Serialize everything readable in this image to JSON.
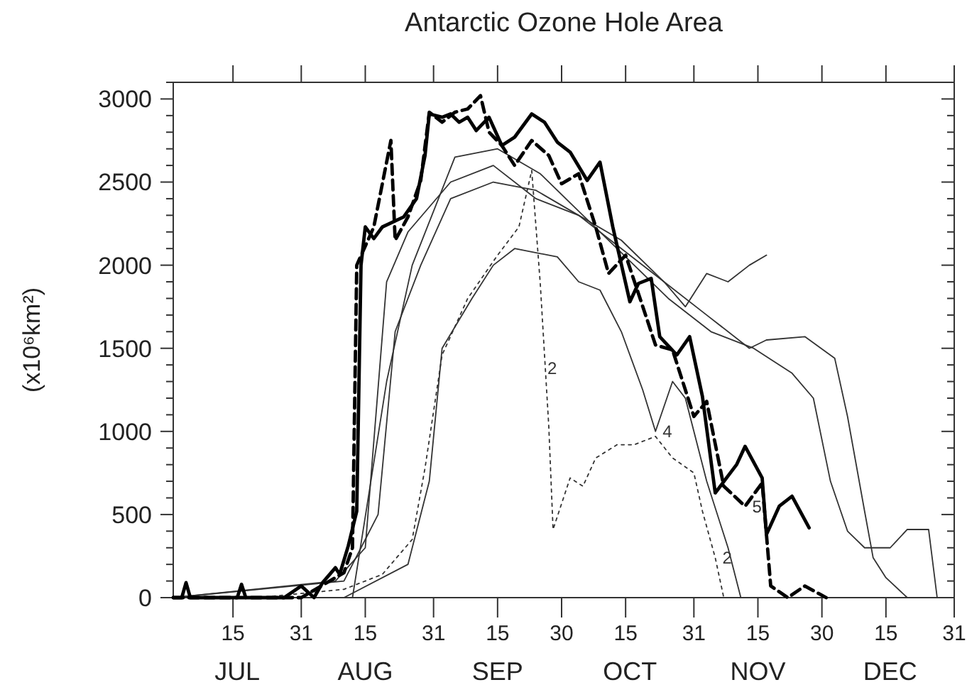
{
  "chart_data": {
    "type": "line",
    "title": "Antarctic Ozone Hole Area",
    "ylabel": "(x10⁶km²)",
    "xlim": [
      "--07-01",
      "--12-31"
    ],
    "xticks": [
      {
        "value": "--07-15",
        "label": "15"
      },
      {
        "value": "--07-31",
        "label": "31"
      },
      {
        "value": "--08-15",
        "label": "15"
      },
      {
        "value": "--08-31",
        "label": "31"
      },
      {
        "value": "--09-15",
        "label": "15"
      },
      {
        "value": "--09-30",
        "label": "30"
      },
      {
        "value": "--10-15",
        "label": "15"
      },
      {
        "value": "--10-31",
        "label": "31"
      },
      {
        "value": "--11-15",
        "label": "15"
      },
      {
        "value": "--11-30",
        "label": "30"
      },
      {
        "value": "--12-15",
        "label": "15"
      },
      {
        "value": "--12-31",
        "label": "31"
      }
    ],
    "x2lim": [
      "--07-01",
      "--12-31"
    ],
    "x2ticks": [
      {
        "value": "--07-16",
        "label": "JUL"
      },
      {
        "value": "--08-15",
        "label": "AUG"
      },
      {
        "value": "--09-15",
        "label": "SEP"
      },
      {
        "value": "--10-16",
        "label": "OCT"
      },
      {
        "value": "--11-15",
        "label": "NOV"
      },
      {
        "value": "--12-16",
        "label": "DEC"
      }
    ],
    "ylim": [
      0,
      3100
    ],
    "yticks": [
      0,
      {
        "value": 100,
        "label": null
      },
      {
        "value": 200,
        "label": null
      },
      {
        "value": 300,
        "label": null
      },
      {
        "value": 400,
        "label": null
      },
      500,
      {
        "value": 600,
        "label": null
      },
      {
        "value": 700,
        "label": null
      },
      {
        "value": 800,
        "label": null
      },
      {
        "value": 900,
        "label": null
      },
      1000,
      {
        "value": 1100,
        "label": null
      },
      {
        "value": 1200,
        "label": null
      },
      {
        "value": 1300,
        "label": null
      },
      {
        "value": 1400,
        "label": null
      },
      1500,
      {
        "value": 1600,
        "label": null
      },
      {
        "value": 1700,
        "label": null
      },
      {
        "value": 1800,
        "label": null
      },
      {
        "value": 1900,
        "label": null
      },
      2000,
      {
        "value": 2100,
        "label": null
      },
      {
        "value": 2200,
        "label": null
      },
      {
        "value": 2300,
        "label": null
      },
      {
        "value": 2400,
        "label": null
      },
      2500,
      {
        "value": 2600,
        "label": null
      },
      {
        "value": 2700,
        "label": null
      },
      {
        "value": 2800,
        "label": null
      },
      {
        "value": 2900,
        "label": null
      },
      3000,
      {
        "value": 3100,
        "label": null
      }
    ],
    "grid": false,
    "series": [
      {
        "color": "#333333",
        "line_style": "solid",
        "x": [
          "--07-01",
          "--08-10",
          "--08-18",
          "--08-22",
          "--08-28",
          "--09-04",
          "--09-14",
          "--09-24",
          "--10-04",
          "--10-14",
          "--10-24",
          "--11-03",
          "--11-13",
          "--11-17",
          "--11-26",
          "--12-03",
          "--12-06",
          "--12-10",
          "--12-12",
          "--12-15",
          "--12-20",
          "--12-31"
        ],
        "values": [
          0,
          100,
          500,
          1600,
          2000,
          2400,
          2500,
          2450,
          2300,
          2100,
          1900,
          1700,
          1500,
          1550,
          1570,
          1440,
          1090,
          520,
          240,
          120,
          0,
          0
        ]
      },
      {
        "color": "#333333",
        "line_style": "solid",
        "x": [
          "--07-01",
          "--08-08",
          "--08-15",
          "--08-20",
          "--08-25",
          "--09-04",
          "--09-14",
          "--09-24",
          "--10-04",
          "--10-14",
          "--10-24",
          "--10-29",
          "--11-03",
          "--11-08",
          "--11-13",
          "--11-17"
        ],
        "values": [
          0,
          100,
          300,
          1900,
          2200,
          2500,
          2600,
          2400,
          2300,
          2150,
          1900,
          1750,
          1950,
          1900,
          2000,
          2060
        ]
      },
      {
        "color": "#333333",
        "line_style": "solid",
        "x": [
          "--07-01",
          "--08-12",
          "--08-20",
          "--08-26",
          "--09-05",
          "--09-15",
          "--09-25",
          "--10-05",
          "--10-15",
          "--10-25",
          "--11-04",
          "--11-14",
          "--11-23",
          "--11-28",
          "--12-02",
          "--12-06",
          "--12-10",
          "--12-16",
          "--12-20",
          "--12-25",
          "--12-27",
          "--12-31"
        ],
        "values": [
          0,
          0,
          1300,
          2000,
          2650,
          2700,
          2550,
          2300,
          2050,
          1800,
          1600,
          1500,
          1350,
          1200,
          700,
          400,
          300,
          300,
          410,
          410,
          0,
          0
        ]
      },
      {
        "color": "#333333",
        "line_style": "solid",
        "x": [
          "--07-01",
          "--08-10",
          "--08-25",
          "--08-30",
          "--09-02",
          "--09-09",
          "--09-14",
          "--09-19",
          "--09-29",
          "--10-04",
          "--10-09",
          "--10-14",
          "--10-19",
          "--10-22",
          "--10-26",
          "--10-29",
          "--11-03",
          "--11-08",
          "--11-11"
        ],
        "values": [
          0,
          0,
          200,
          700,
          1500,
          1800,
          2000,
          2100,
          2050,
          1900,
          1850,
          1600,
          1250,
          1000,
          1300,
          1200,
          700,
          300,
          0
        ]
      },
      {
        "color": "#333333",
        "line_style": "dotted",
        "x": [
          "--07-01",
          "--07-21",
          "--08-10",
          "--08-19",
          "--08-26",
          "--08-29",
          "--09-02",
          "--09-08",
          "--09-15",
          "--09-20",
          "--09-23",
          "--09-25",
          "--09-27",
          "--09-28",
          "--10-02",
          "--10-05",
          "--10-08",
          "--10-13",
          "--10-17",
          "--10-22",
          "--10-26",
          "--10-31",
          "--11-02",
          "--11-05",
          "--11-07"
        ],
        "values": [
          0,
          0,
          50,
          140,
          350,
          780,
          1460,
          1800,
          2060,
          2230,
          2570,
          1890,
          1030,
          410,
          720,
          670,
          840,
          920,
          920,
          970,
          840,
          750,
          520,
          240,
          0
        ]
      },
      {
        "color": "#000000",
        "line_style": "dashed",
        "x": [
          "--07-01",
          "--07-31",
          "--08-10",
          "--08-12",
          "--08-13",
          "--08-17",
          "--08-21",
          "--08-22",
          "--08-25",
          "--08-28",
          "--08-30",
          "--09-02",
          "--09-05",
          "--09-08",
          "--09-11",
          "--09-13",
          "--09-16",
          "--09-19",
          "--09-23",
          "--09-27",
          "--09-30",
          "--10-04",
          "--10-08",
          "--10-11",
          "--10-15",
          "--10-18",
          "--10-22",
          "--10-26",
          "--10-31",
          "--11-03",
          "--11-07",
          "--11-12",
          "--11-16",
          "--11-18",
          "--11-22",
          "--11-26",
          "--12-01"
        ],
        "values": [
          0,
          0,
          150,
          300,
          2000,
          2230,
          2750,
          2150,
          2290,
          2510,
          2920,
          2860,
          2920,
          2940,
          3020,
          2800,
          2720,
          2600,
          2750,
          2660,
          2490,
          2550,
          2230,
          1950,
          2060,
          1830,
          1520,
          1490,
          1090,
          1180,
          670,
          550,
          690,
          70,
          0,
          70,
          0
        ]
      },
      {
        "color": "#000000",
        "line_style": "solid",
        "x": [
          "--07-01",
          "--07-03",
          "--07-04",
          "--07-05",
          "--07-16",
          "--07-17",
          "--07-18",
          "--07-27",
          "--07-31",
          "--08-03",
          "--08-05",
          "--08-08",
          "--08-09",
          "--08-11",
          "--08-13",
          "--08-14",
          "--08-15",
          "--08-17",
          "--08-19",
          "--08-24",
          "--08-27",
          "--08-29",
          "--08-30",
          "--09-02",
          "--09-04",
          "--09-06",
          "--09-08",
          "--09-10",
          "--09-13",
          "--09-16",
          "--09-19",
          "--09-23",
          "--09-26",
          "--09-29",
          "--10-02",
          "--10-06",
          "--10-09",
          "--10-12",
          "--10-16",
          "--10-18",
          "--10-21",
          "--10-23",
          "--10-27",
          "--10-30",
          "--11-02",
          "--11-05",
          "--11-10",
          "--11-12",
          "--11-16",
          "--11-17",
          "--11-20",
          "--11-23",
          "--11-27"
        ],
        "values": [
          0,
          0,
          90,
          0,
          0,
          80,
          0,
          0,
          70,
          0,
          90,
          180,
          140,
          310,
          520,
          2000,
          2230,
          2160,
          2230,
          2290,
          2400,
          2660,
          2910,
          2890,
          2910,
          2860,
          2890,
          2810,
          2890,
          2720,
          2770,
          2910,
          2860,
          2740,
          2680,
          2510,
          2620,
          2230,
          1780,
          1890,
          1920,
          1570,
          1460,
          1570,
          1210,
          630,
          800,
          910,
          720,
          380,
          550,
          610,
          420
        ]
      }
    ],
    "annotations": [
      {
        "text": "2",
        "x": "--09-25",
        "y": 1380
      },
      {
        "text": "2",
        "x": "--11-05",
        "y": 240
      },
      {
        "text": "4",
        "x": "--10-22",
        "y": 1000
      },
      {
        "text": "5",
        "x": "--11-12",
        "y": 550
      }
    ]
  }
}
